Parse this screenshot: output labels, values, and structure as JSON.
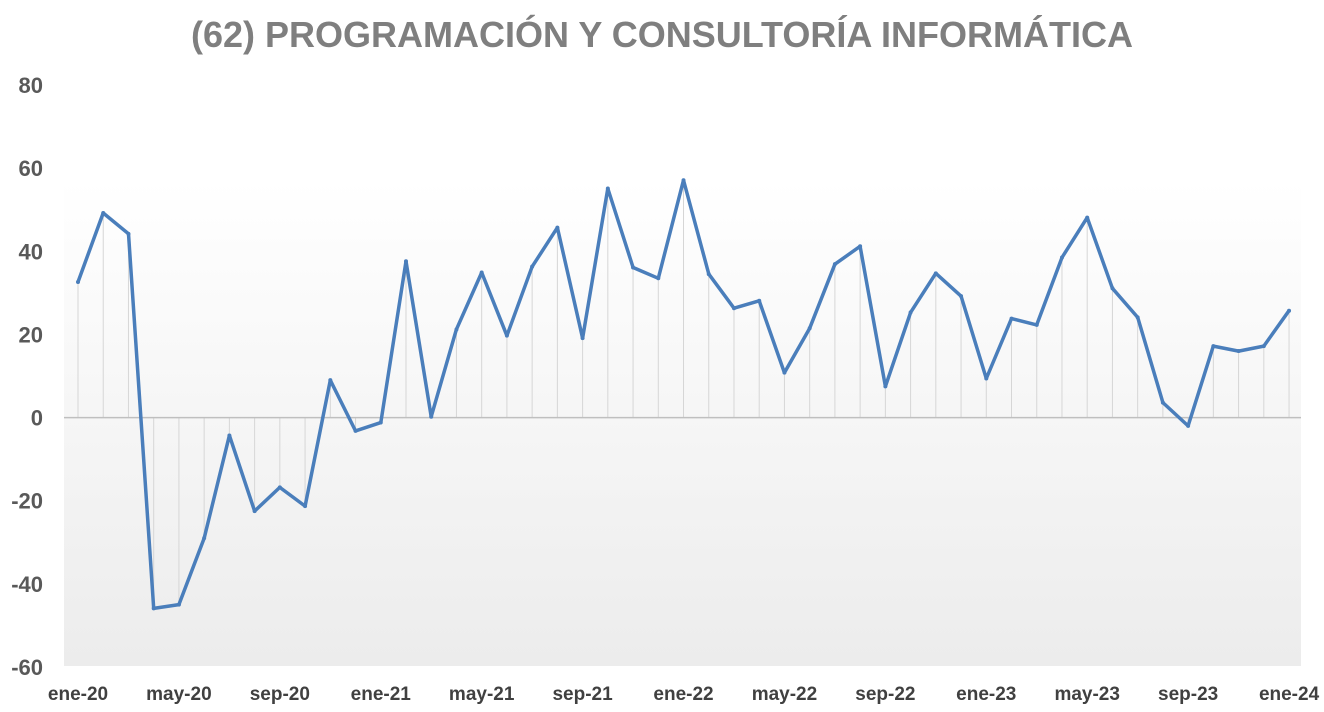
{
  "chart_data": {
    "type": "line",
    "title": "(62) PROGRAMACIÓN Y CONSULTORÍA INFORMÁTICA",
    "xlabel": "",
    "ylabel": "",
    "ylim": [
      -60,
      80
    ],
    "yticks": [
      80,
      60,
      40,
      20,
      0,
      -20,
      -40,
      -60
    ],
    "xtick_labels": [
      "ene-20",
      "may-20",
      "sep-20",
      "ene-21",
      "may-21",
      "sep-21",
      "ene-22",
      "may-22",
      "sep-22",
      "ene-23",
      "may-23",
      "sep-23",
      "ene-24"
    ],
    "months": [
      "ene-20",
      "feb-20",
      "mar-20",
      "abr-20",
      "may-20",
      "jun-20",
      "jul-20",
      "ago-20",
      "sep-20",
      "oct-20",
      "nov-20",
      "dic-20",
      "ene-21",
      "feb-21",
      "mar-21",
      "abr-21",
      "may-21",
      "jun-21",
      "jul-21",
      "ago-21",
      "sep-21",
      "oct-21",
      "nov-21",
      "dic-21",
      "ene-22",
      "feb-22",
      "mar-22",
      "abr-22",
      "may-22",
      "jun-22",
      "jul-22",
      "ago-22",
      "sep-22",
      "oct-22",
      "nov-22",
      "dic-22",
      "ene-23",
      "feb-23",
      "mar-23",
      "abr-23",
      "may-23",
      "jun-23",
      "jul-23",
      "ago-23",
      "sep-23",
      "oct-23",
      "nov-23",
      "dic-23",
      "ene-24"
    ],
    "series": [
      {
        "values": [
          32.6,
          49.2,
          44.2,
          -45.9,
          -45.0,
          -29.0,
          -4.3,
          -22.5,
          -16.8,
          -21.3,
          9.0,
          -3.2,
          -1.2,
          37.6,
          0.2,
          21.2,
          34.9,
          19.7,
          36.3,
          45.7,
          19.1,
          55.1,
          36.1,
          33.5,
          57.1,
          34.5,
          26.3,
          28.1,
          10.8,
          21.5,
          36.9,
          41.2,
          7.5,
          25.3,
          34.7,
          29.2,
          9.4,
          23.8,
          22.3,
          38.5,
          48.1,
          31.1,
          24.1,
          3.6,
          -2.0,
          17.2,
          16.0,
          17.2,
          25.7
        ],
        "color": "#4a7ebb"
      }
    ],
    "grid": false,
    "drop_lines": true,
    "legend": "none"
  }
}
